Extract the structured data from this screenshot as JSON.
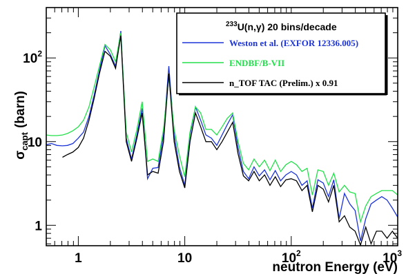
{
  "chart_data": {
    "type": "line",
    "title": "",
    "xlabel": "neutron Energy (eV)",
    "ylabel_main": "σ",
    "ylabel_sub": "capt",
    "ylabel_unit": "(barn)",
    "xscale": "log",
    "yscale": "log",
    "xlim": [
      0.5,
      1000
    ],
    "ylim": [
      0.57,
      400
    ],
    "grid": false,
    "legend_position": "top-right",
    "legend_title": {
      "sup": "233",
      "rest": "U(n,γ) 20 bins/decade"
    },
    "x_ticks": [
      {
        "base": "1",
        "exp": ""
      },
      {
        "base": "10",
        "exp": ""
      },
      {
        "base": "10",
        "exp": "2"
      },
      {
        "base": "10",
        "exp": "3"
      }
    ],
    "y_ticks": [
      {
        "base": "1",
        "exp": ""
      },
      {
        "base": "10",
        "exp": ""
      },
      {
        "base": "10",
        "exp": "2"
      }
    ],
    "series": [
      {
        "name": "Weston et al. (EXFOR 12336.005)",
        "color": "#1b33d8",
        "points": [
          [
            0.5,
            9.2
          ],
          [
            0.56,
            9.5
          ],
          [
            0.63,
            9.0
          ],
          [
            0.71,
            8.9
          ],
          [
            0.79,
            9.0
          ],
          [
            0.89,
            9.5
          ],
          [
            1.0,
            11
          ],
          [
            1.12,
            13
          ],
          [
            1.26,
            20
          ],
          [
            1.41,
            36
          ],
          [
            1.58,
            70
          ],
          [
            1.78,
            140
          ],
          [
            2.0,
            110
          ],
          [
            2.24,
            80
          ],
          [
            2.51,
            210
          ],
          [
            2.82,
            11
          ],
          [
            3.16,
            6.2
          ],
          [
            3.55,
            12
          ],
          [
            3.98,
            25
          ],
          [
            4.47,
            3.6
          ],
          [
            5.01,
            4.8
          ],
          [
            5.62,
            4.9
          ],
          [
            6.31,
            12
          ],
          [
            7.08,
            80
          ],
          [
            7.94,
            12
          ],
          [
            8.91,
            5.0
          ],
          [
            10.0,
            3.0
          ],
          [
            11.2,
            12
          ],
          [
            12.6,
            26
          ],
          [
            14.1,
            18
          ],
          [
            15.8,
            12
          ],
          [
            17.8,
            11
          ],
          [
            20.0,
            9
          ],
          [
            22.4,
            12
          ],
          [
            25.1,
            16
          ],
          [
            28.2,
            21
          ],
          [
            31.6,
            8.5
          ],
          [
            35.5,
            4.4
          ],
          [
            39.8,
            3.6
          ],
          [
            44.7,
            5.0
          ],
          [
            50.1,
            3.9
          ],
          [
            56.2,
            4.6
          ],
          [
            63.1,
            3.5
          ],
          [
            70.8,
            4.5
          ],
          [
            79.4,
            3.4
          ],
          [
            89.1,
            4.0
          ],
          [
            100,
            4.4
          ],
          [
            112,
            4.0
          ],
          [
            126,
            3.0
          ],
          [
            141,
            3.4
          ],
          [
            158,
            1.6
          ],
          [
            178,
            3.5
          ],
          [
            200,
            3.2
          ],
          [
            224,
            2.2
          ],
          [
            251,
            3.5
          ],
          [
            282,
            1.2
          ],
          [
            316,
            2.4
          ],
          [
            355,
            1.8
          ],
          [
            398,
            1.5
          ],
          [
            447,
            0.65
          ],
          [
            501,
            1.2
          ],
          [
            562,
            1.8
          ],
          [
            631,
            2.0
          ],
          [
            708,
            2.2
          ],
          [
            794,
            2.0
          ],
          [
            891,
            1.6
          ],
          [
            1000,
            1.25
          ]
        ]
      },
      {
        "name": "ENDBF/B-VII",
        "color": "#22e04a",
        "points": [
          [
            0.5,
            12
          ],
          [
            0.56,
            11.8
          ],
          [
            0.63,
            11.8
          ],
          [
            0.71,
            12
          ],
          [
            0.79,
            12.5
          ],
          [
            0.89,
            13.5
          ],
          [
            1.0,
            15
          ],
          [
            1.12,
            18
          ],
          [
            1.26,
            26
          ],
          [
            1.41,
            45
          ],
          [
            1.58,
            80
          ],
          [
            1.78,
            145
          ],
          [
            2.0,
            125
          ],
          [
            2.24,
            90
          ],
          [
            2.51,
            200
          ],
          [
            2.82,
            13
          ],
          [
            3.16,
            7.5
          ],
          [
            3.55,
            14
          ],
          [
            3.98,
            30
          ],
          [
            4.47,
            5.8
          ],
          [
            5.01,
            6.2
          ],
          [
            5.62,
            5.8
          ],
          [
            6.31,
            14
          ],
          [
            7.08,
            60
          ],
          [
            7.94,
            14
          ],
          [
            8.91,
            6.8
          ],
          [
            10.0,
            3.8
          ],
          [
            11.2,
            13
          ],
          [
            12.6,
            26
          ],
          [
            14.1,
            22
          ],
          [
            15.8,
            14
          ],
          [
            17.8,
            14
          ],
          [
            20.0,
            12
          ],
          [
            22.4,
            15
          ],
          [
            25.1,
            19
          ],
          [
            28.2,
            22
          ],
          [
            31.6,
            10
          ],
          [
            35.5,
            5.5
          ],
          [
            39.8,
            4.6
          ],
          [
            44.7,
            6.2
          ],
          [
            50.1,
            5.0
          ],
          [
            56.2,
            6.0
          ],
          [
            63.1,
            4.5
          ],
          [
            70.8,
            6.0
          ],
          [
            79.4,
            4.4
          ],
          [
            89.1,
            5.3
          ],
          [
            100,
            5.8
          ],
          [
            112,
            5.3
          ],
          [
            126,
            4.4
          ],
          [
            141,
            4.8
          ],
          [
            158,
            2.3
          ],
          [
            178,
            4.6
          ],
          [
            200,
            4.4
          ],
          [
            224,
            3.0
          ],
          [
            251,
            4.2
          ],
          [
            282,
            2.5
          ],
          [
            316,
            3.0
          ],
          [
            355,
            2.5
          ],
          [
            398,
            2.4
          ],
          [
            447,
            1.1
          ],
          [
            501,
            1.7
          ],
          [
            562,
            2.2
          ],
          [
            631,
            2.4
          ],
          [
            708,
            2.6
          ],
          [
            794,
            2.6
          ],
          [
            891,
            2.6
          ],
          [
            1000,
            2.3
          ]
        ]
      },
      {
        "name": "n_TOF TAC (Prelim.) x 0.91",
        "color": "#000000",
        "points": [
          [
            0.71,
            6.5
          ],
          [
            0.79,
            7.0
          ],
          [
            0.89,
            7.5
          ],
          [
            1.0,
            8.5
          ],
          [
            1.12,
            11
          ],
          [
            1.26,
            18
          ],
          [
            1.41,
            33
          ],
          [
            1.58,
            65
          ],
          [
            1.78,
            120
          ],
          [
            2.0,
            105
          ],
          [
            2.24,
            75
          ],
          [
            2.51,
            185
          ],
          [
            2.82,
            10
          ],
          [
            3.16,
            5.8
          ],
          [
            3.55,
            11
          ],
          [
            3.98,
            22
          ],
          [
            4.47,
            4.0
          ],
          [
            5.01,
            4.4
          ],
          [
            5.62,
            4.2
          ],
          [
            6.31,
            10
          ],
          [
            7.08,
            65
          ],
          [
            7.94,
            10
          ],
          [
            8.91,
            4.4
          ],
          [
            10.0,
            2.8
          ],
          [
            11.2,
            10
          ],
          [
            12.6,
            22
          ],
          [
            14.1,
            15
          ],
          [
            15.8,
            10
          ],
          [
            17.8,
            10
          ],
          [
            20.0,
            8
          ],
          [
            22.4,
            10
          ],
          [
            25.1,
            13
          ],
          [
            28.2,
            17
          ],
          [
            31.6,
            7.2
          ],
          [
            35.5,
            3.9
          ],
          [
            39.8,
            3.4
          ],
          [
            44.7,
            4.4
          ],
          [
            50.1,
            3.4
          ],
          [
            56.2,
            4.0
          ],
          [
            63.1,
            3.0
          ],
          [
            70.8,
            3.8
          ],
          [
            79.4,
            2.9
          ],
          [
            89.1,
            3.5
          ],
          [
            100,
            3.6
          ],
          [
            112,
            3.4
          ],
          [
            126,
            2.6
          ],
          [
            141,
            3.0
          ],
          [
            158,
            1.45
          ],
          [
            178,
            3.0
          ],
          [
            200,
            2.7
          ],
          [
            224,
            1.9
          ],
          [
            251,
            3.0
          ],
          [
            282,
            1.1
          ],
          [
            316,
            1.3
          ],
          [
            355,
            0.95
          ],
          [
            398,
            0.85
          ],
          [
            447,
            0.58
          ],
          [
            501,
            0.95
          ],
          [
            562,
            0.6
          ],
          [
            631,
            0.85
          ],
          [
            708,
            0.85
          ],
          [
            794,
            0.7
          ],
          [
            891,
            0.85
          ],
          [
            1000,
            0.7
          ]
        ]
      }
    ]
  }
}
